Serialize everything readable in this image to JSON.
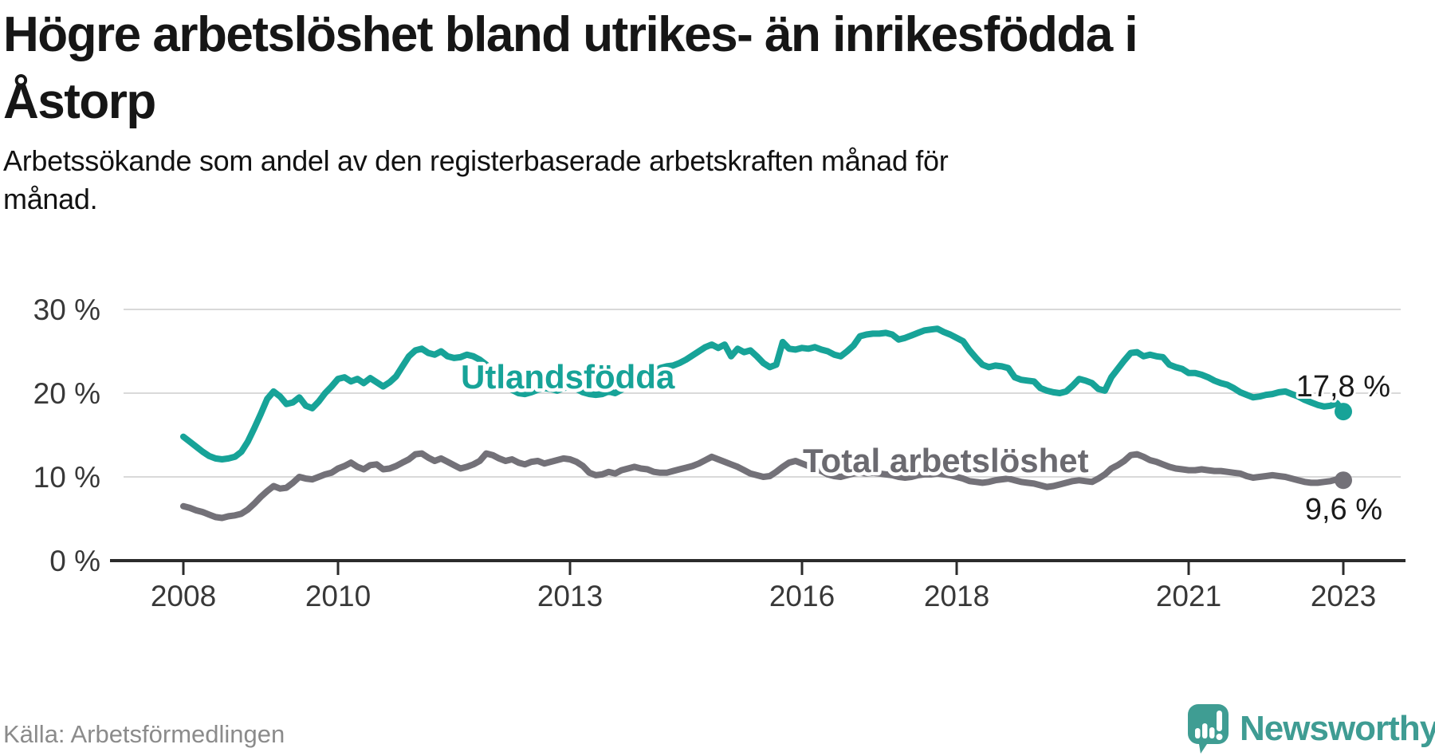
{
  "footer": {
    "source": "Källa: Arbetsförmedlingen",
    "brand": "Newsworthy"
  },
  "colors": {
    "accent_teal": "#17a398",
    "line_gray": "#737178",
    "series_label_gray": "#6b6a70",
    "gridline": "#d9d9d9",
    "axis": "#2b2b2b",
    "text_dark": "#161616",
    "muted_text": "#8b8b8b",
    "logo_teal": "#3f9c93"
  },
  "chart_data": {
    "type": "line",
    "title": "Högre arbetslöshet bland utrikes- än inrikesfödda i\nÅstorp",
    "subtitle": "Arbetssökande som andel av den registerbaserade arbetskraften månad för\nmånad.",
    "x_unit": "month",
    "x_range": [
      "2008-01",
      "2023-01"
    ],
    "frequency": "monthly",
    "ylim": [
      0,
      30
    ],
    "grid": "horizontal",
    "legend_position": "inline-labels",
    "yticks": [
      {
        "value": 0,
        "label": "0 %"
      },
      {
        "value": 10,
        "label": "10 %"
      },
      {
        "value": 20,
        "label": "20 %"
      },
      {
        "value": 30,
        "label": "30 %"
      }
    ],
    "xticks": [
      {
        "year": 2008,
        "label": "2008"
      },
      {
        "year": 2010,
        "label": "2010"
      },
      {
        "year": 2013,
        "label": "2013"
      },
      {
        "year": 2016,
        "label": "2016"
      },
      {
        "year": 2018,
        "label": "2018"
      },
      {
        "year": 2021,
        "label": "2021"
      },
      {
        "year": 2023,
        "label": "2023"
      }
    ],
    "series": [
      {
        "name": "Utlandsfödda",
        "slug": "utlandsfodda",
        "color": "#17a398",
        "start": "2008-01",
        "end_value": 17.8,
        "end_label": "17,8 %",
        "values": [
          14.8,
          14.2,
          13.6,
          13.0,
          12.5,
          12.2,
          12.1,
          12.2,
          12.4,
          13.0,
          14.2,
          15.8,
          17.5,
          19.3,
          20.2,
          19.6,
          18.7,
          18.9,
          19.5,
          18.5,
          18.2,
          19.0,
          20.0,
          20.8,
          21.7,
          21.9,
          21.4,
          21.7,
          21.2,
          21.8,
          21.3,
          20.8,
          21.3,
          22.0,
          23.2,
          24.4,
          25.1,
          25.3,
          24.8,
          24.6,
          25.0,
          24.4,
          24.2,
          24.3,
          24.6,
          24.4,
          24.0,
          23.4,
          22.6,
          21.8,
          21.0,
          20.4,
          20.0,
          19.9,
          20.1,
          20.4,
          20.6,
          20.5,
          20.3,
          20.6,
          20.8,
          20.5,
          20.1,
          19.9,
          19.8,
          19.9,
          20.2,
          20.0,
          20.4,
          20.9,
          21.3,
          21.8,
          22.2,
          22.6,
          23.0,
          23.2,
          23.3,
          23.6,
          24.0,
          24.5,
          25.0,
          25.5,
          25.8,
          25.4,
          25.8,
          24.4,
          25.3,
          24.9,
          25.1,
          24.4,
          23.6,
          23.1,
          23.4,
          26.1,
          25.3,
          25.2,
          25.4,
          25.3,
          25.5,
          25.2,
          25.0,
          24.6,
          24.4,
          25.0,
          25.7,
          26.8,
          27.0,
          27.1,
          27.1,
          27.2,
          27.0,
          26.4,
          26.6,
          26.9,
          27.2,
          27.5,
          27.6,
          27.7,
          27.3,
          27.0,
          26.6,
          26.2,
          25.1,
          24.2,
          23.4,
          23.1,
          23.3,
          23.2,
          23.0,
          21.9,
          21.6,
          21.5,
          21.4,
          20.6,
          20.3,
          20.1,
          20.0,
          20.2,
          20.9,
          21.7,
          21.5,
          21.2,
          20.5,
          20.3,
          21.9,
          22.9,
          23.9,
          24.8,
          24.9,
          24.4,
          24.6,
          24.4,
          24.3,
          23.4,
          23.1,
          22.9,
          22.4,
          22.4,
          22.2,
          21.9,
          21.5,
          21.2,
          21.0,
          20.6,
          20.1,
          19.8,
          19.5,
          19.6,
          19.8,
          19.9,
          20.1,
          20.2,
          19.9,
          19.6,
          19.2,
          18.9,
          18.6,
          18.4,
          18.5,
          18.8,
          17.8
        ]
      },
      {
        "name": "Total arbetslöshet",
        "slug": "total",
        "color": "#737178",
        "start": "2008-01",
        "end_value": 9.6,
        "end_label": "9,6 %",
        "values": [
          6.5,
          6.3,
          6.0,
          5.8,
          5.5,
          5.2,
          5.1,
          5.3,
          5.4,
          5.6,
          6.1,
          6.8,
          7.6,
          8.3,
          8.9,
          8.6,
          8.7,
          9.3,
          10.0,
          9.8,
          9.7,
          10.0,
          10.3,
          10.5,
          11.0,
          11.3,
          11.7,
          11.2,
          10.9,
          11.4,
          11.5,
          10.9,
          11.0,
          11.3,
          11.7,
          12.1,
          12.7,
          12.8,
          12.3,
          11.9,
          12.2,
          11.8,
          11.4,
          11.0,
          11.2,
          11.5,
          11.9,
          12.8,
          12.6,
          12.2,
          11.9,
          12.1,
          11.7,
          11.5,
          11.8,
          11.9,
          11.6,
          11.8,
          12.0,
          12.2,
          12.1,
          11.8,
          11.3,
          10.5,
          10.2,
          10.3,
          10.6,
          10.4,
          10.8,
          11.0,
          11.2,
          11.0,
          10.9,
          10.6,
          10.5,
          10.5,
          10.7,
          10.9,
          11.1,
          11.3,
          11.6,
          12.0,
          12.4,
          12.1,
          11.8,
          11.5,
          11.2,
          10.8,
          10.4,
          10.2,
          10.0,
          10.1,
          10.6,
          11.2,
          11.7,
          11.9,
          11.6,
          11.3,
          11.0,
          10.7,
          10.3,
          10.1,
          10.0,
          10.2,
          10.4,
          10.5,
          10.4,
          10.5,
          10.4,
          10.3,
          10.2,
          10.0,
          9.9,
          10.0,
          10.2,
          10.3,
          10.3,
          10.4,
          10.3,
          10.2,
          10.0,
          9.8,
          9.5,
          9.4,
          9.3,
          9.4,
          9.6,
          9.7,
          9.8,
          9.6,
          9.4,
          9.3,
          9.2,
          9.0,
          8.8,
          8.9,
          9.1,
          9.3,
          9.5,
          9.6,
          9.5,
          9.4,
          9.8,
          10.3,
          11.0,
          11.4,
          11.9,
          12.6,
          12.7,
          12.4,
          12.0,
          11.8,
          11.5,
          11.2,
          11.0,
          10.9,
          10.8,
          10.8,
          10.9,
          10.8,
          10.7,
          10.7,
          10.6,
          10.5,
          10.4,
          10.1,
          9.9,
          10.0,
          10.1,
          10.2,
          10.1,
          10.0,
          9.8,
          9.6,
          9.4,
          9.3,
          9.3,
          9.4,
          9.5,
          9.7,
          9.6
        ]
      }
    ]
  }
}
